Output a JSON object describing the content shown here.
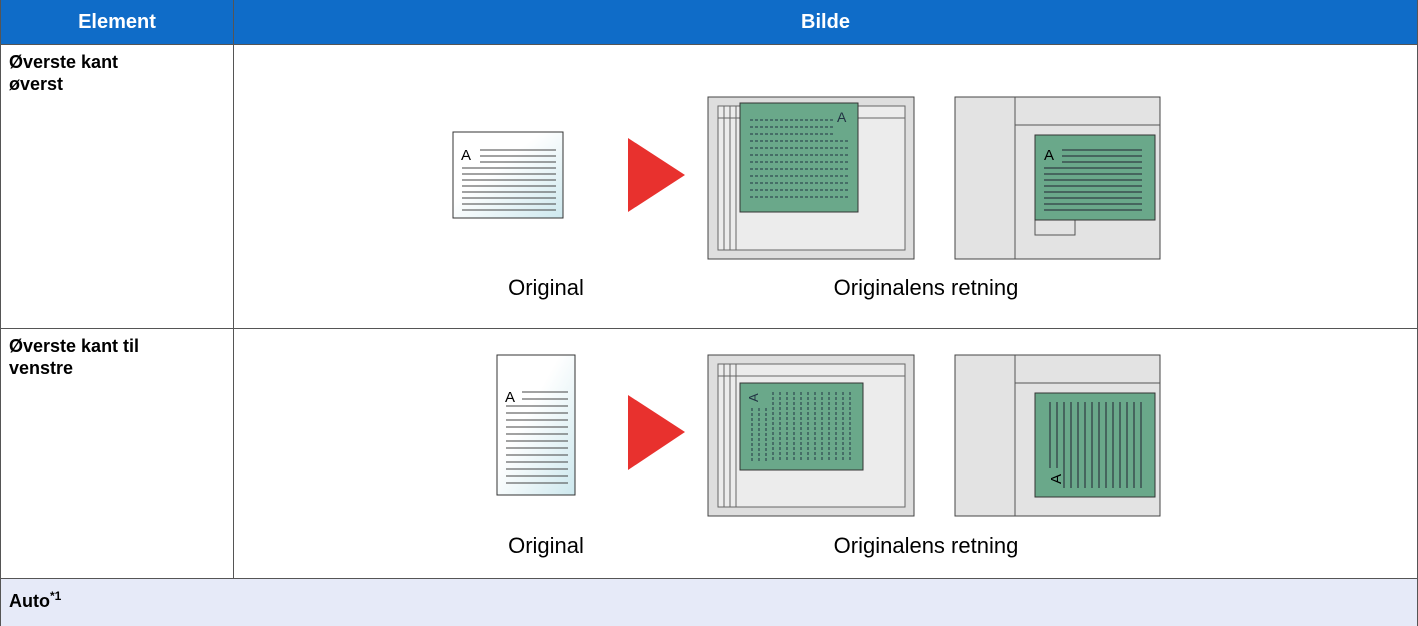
{
  "header": {
    "columns": [
      "Element",
      "Bilde"
    ]
  },
  "rows": [
    {
      "element": "Øverste kant øverst",
      "captions": [
        "Original",
        "Originalens retning"
      ]
    },
    {
      "element": "Øverste kant til venstre",
      "captions": [
        "Original",
        "Originalens retning"
      ]
    }
  ],
  "footer": {
    "label": "Auto",
    "note": "*1"
  }
}
